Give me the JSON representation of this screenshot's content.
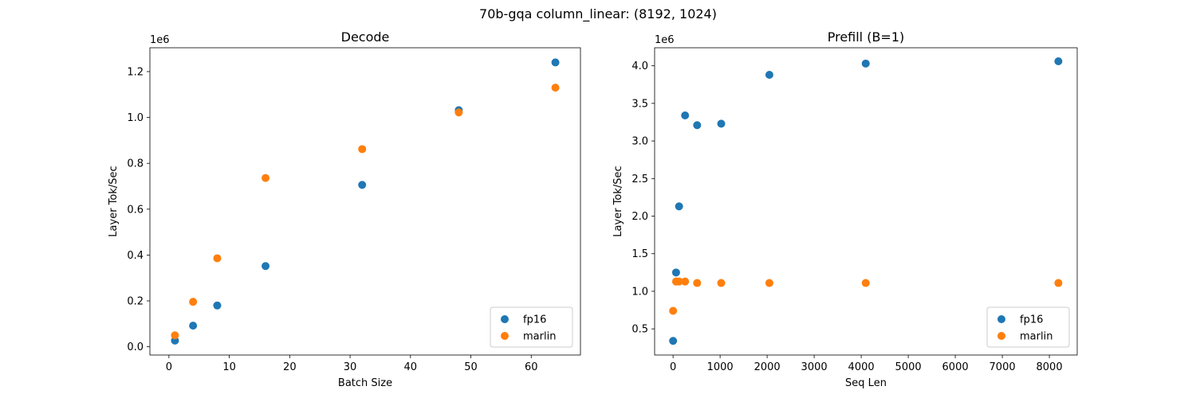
{
  "suptitle": "70b-gqa column_linear: (8192, 1024)",
  "colors": {
    "fp16": "#1f77b4",
    "marlin": "#ff7f0e"
  },
  "chart_data": [
    {
      "type": "scatter",
      "title": "Decode",
      "xlabel": "Batch Size",
      "ylabel": "Layer Tok/Sec",
      "y_offset_label": "1e6",
      "y_scale": 1000000,
      "xlim": [
        -3.15,
        68.15
      ],
      "ylim": [
        -0.036,
        1.304
      ],
      "xticks": [
        0,
        10,
        20,
        30,
        40,
        50,
        60
      ],
      "yticks": [
        0.0,
        0.2,
        0.4,
        0.6,
        0.8,
        1.0,
        1.2
      ],
      "ytick_labels": [
        "0.0",
        "0.2",
        "0.4",
        "0.6",
        "0.8",
        "1.0",
        "1.2"
      ],
      "grid": false,
      "legend_position": "lower-right",
      "series": [
        {
          "name": "fp16",
          "color": "#1f77b4",
          "x": [
            1,
            4,
            8,
            16,
            32,
            48,
            64
          ],
          "y": [
            27000,
            92000,
            180000,
            352000,
            706000,
            1032000,
            1240000
          ]
        },
        {
          "name": "marlin",
          "color": "#ff7f0e",
          "x": [
            1,
            4,
            8,
            16,
            32,
            48,
            64
          ],
          "y": [
            50000,
            196000,
            386000,
            736000,
            862000,
            1022000,
            1130000
          ]
        }
      ]
    },
    {
      "type": "scatter",
      "title": "Prefill (B=1)",
      "xlabel": "Seq Len",
      "ylabel": "Layer Tok/Sec",
      "y_offset_label": "1e6",
      "y_scale": 1000000,
      "xlim": [
        -392,
        8592
      ],
      "ylim": [
        0.152,
        4.24
      ],
      "xticks": [
        0,
        1000,
        2000,
        3000,
        4000,
        5000,
        6000,
        7000,
        8000
      ],
      "yticks": [
        0.5,
        1.0,
        1.5,
        2.0,
        2.5,
        3.0,
        3.5,
        4.0
      ],
      "ytick_labels": [
        "0.5",
        "1.0",
        "1.5",
        "2.0",
        "2.5",
        "3.0",
        "3.5",
        "4.0"
      ],
      "grid": false,
      "legend_position": "lower-right",
      "series": [
        {
          "name": "fp16",
          "color": "#1f77b4",
          "x": [
            1,
            64,
            128,
            256,
            512,
            1024,
            2048,
            4096,
            8192
          ],
          "y": [
            340000,
            1250000,
            2130000,
            3340000,
            3210000,
            3230000,
            3880000,
            4030000,
            4060000
          ]
        },
        {
          "name": "marlin",
          "color": "#ff7f0e",
          "x": [
            1,
            64,
            128,
            256,
            512,
            1024,
            2048,
            4096,
            8192
          ],
          "y": [
            740000,
            1130000,
            1130000,
            1130000,
            1110000,
            1110000,
            1110000,
            1110000,
            1110000
          ]
        }
      ]
    }
  ]
}
